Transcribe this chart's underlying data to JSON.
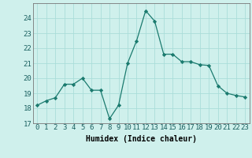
{
  "x": [
    0,
    1,
    2,
    3,
    4,
    5,
    6,
    7,
    8,
    9,
    10,
    11,
    12,
    13,
    14,
    15,
    16,
    17,
    18,
    19,
    20,
    21,
    22,
    23
  ],
  "y": [
    18.2,
    18.5,
    18.7,
    19.6,
    19.6,
    20.0,
    19.2,
    19.2,
    17.3,
    18.2,
    21.0,
    22.5,
    24.5,
    23.8,
    21.6,
    21.6,
    21.1,
    21.1,
    20.9,
    20.85,
    19.5,
    19.0,
    18.85,
    18.75
  ],
  "xlabel": "Humidex (Indice chaleur)",
  "xlim": [
    -0.5,
    23.5
  ],
  "ylim": [
    17,
    25.0
  ],
  "yticks": [
    17,
    18,
    19,
    20,
    21,
    22,
    23,
    24
  ],
  "xticks": [
    0,
    1,
    2,
    3,
    4,
    5,
    6,
    7,
    8,
    9,
    10,
    11,
    12,
    13,
    14,
    15,
    16,
    17,
    18,
    19,
    20,
    21,
    22,
    23
  ],
  "line_color": "#1a7a6e",
  "bg_color": "#cff0ec",
  "grid_color": "#aaddda",
  "label_fontsize": 7,
  "tick_fontsize": 6.5
}
